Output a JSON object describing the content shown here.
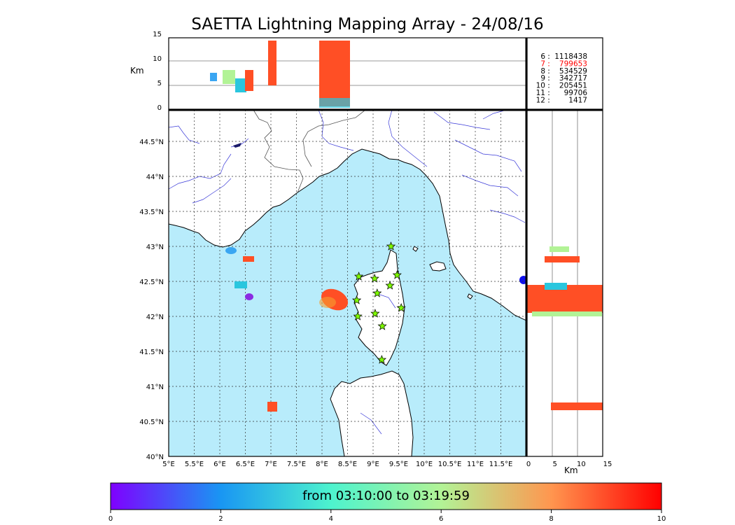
{
  "title": "SAETTA Lightning Mapping Array - 24/08/16",
  "map": {
    "lon_ticks": [
      "5°E",
      "5.5°E",
      "6°E",
      "6.5°E",
      "7°E",
      "7.5°E",
      "8°E",
      "8.5°E",
      "9°E",
      "9.5°E",
      "10°E",
      "10.5°E",
      "11°E",
      "11.5°E"
    ],
    "lat_ticks": [
      "40°N",
      "40.5°N",
      "41°N",
      "41.5°N",
      "42°N",
      "42.5°N",
      "43°N",
      "43.5°N",
      "44°N",
      "44.5°N"
    ],
    "lon_range": [
      5,
      12
    ],
    "lat_range": [
      40,
      44.95
    ],
    "sea_color": "#b8ecfb",
    "land_color": "#ffffff",
    "river_color": "#3a3ad8",
    "station_color": "#7ffc00",
    "stations": [
      {
        "lon": 9.35,
        "lat": 43.0
      },
      {
        "lon": 8.72,
        "lat": 42.57
      },
      {
        "lon": 9.03,
        "lat": 42.54
      },
      {
        "lon": 9.47,
        "lat": 42.59
      },
      {
        "lon": 9.33,
        "lat": 42.44
      },
      {
        "lon": 9.08,
        "lat": 42.33
      },
      {
        "lon": 8.68,
        "lat": 42.23
      },
      {
        "lon": 9.55,
        "lat": 42.12
      },
      {
        "lon": 9.04,
        "lat": 42.04
      },
      {
        "lon": 8.7,
        "lat": 42.0
      },
      {
        "lon": 9.18,
        "lat": 41.86
      },
      {
        "lon": 9.17,
        "lat": 41.38
      }
    ]
  },
  "altitude_panel": {
    "ylabel": "Km",
    "ticks": [
      "0",
      "5",
      "10",
      "15"
    ]
  },
  "side_panel": {
    "xlabel": "Km",
    "ticks": [
      "0",
      "5",
      "10",
      "15"
    ]
  },
  "legend": {
    "highlight_color": "#ff0000",
    "entries": [
      {
        "key": "6",
        "value": "1118438",
        "highlight": false
      },
      {
        "key": "7",
        "value": "799653",
        "highlight": true
      },
      {
        "key": "8",
        "value": "534529",
        "highlight": false
      },
      {
        "key": "9",
        "value": "342717",
        "highlight": false
      },
      {
        "key": "10",
        "value": "205451",
        "highlight": false
      },
      {
        "key": "11",
        "value": "99706",
        "highlight": false
      },
      {
        "key": "12",
        "value": "1417",
        "highlight": false
      }
    ]
  },
  "colorbar": {
    "label": "from 03:10:00 to 03:19:59",
    "ticks": [
      "0",
      "2",
      "4",
      "6",
      "8",
      "10"
    ],
    "range": [
      0,
      10
    ]
  }
}
